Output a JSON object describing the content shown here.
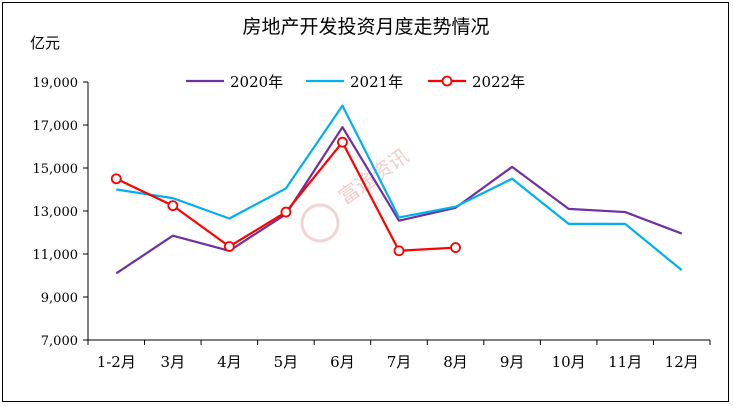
{
  "chart_data": {
    "type": "line",
    "title": "房地产开发投资月度走势情况",
    "unit_label": "亿元",
    "categories": [
      "1-2月",
      "3月",
      "4月",
      "5月",
      "6月",
      "7月",
      "8月",
      "9月",
      "10月",
      "11月",
      "12月"
    ],
    "ylim": [
      7000,
      19000
    ],
    "yticks": [
      7000,
      9000,
      11000,
      13000,
      15000,
      17000,
      19000
    ],
    "ytick_labels": [
      "7,000",
      "9,000",
      "11,000",
      "13,000",
      "15,000",
      "17,000",
      "19,000"
    ],
    "grid": false,
    "legend_position": "top",
    "series": [
      {
        "name": "2020年",
        "color": "#7030a0",
        "marker": "none",
        "values": [
          10100,
          11850,
          11150,
          12850,
          16900,
          12550,
          13150,
          15050,
          13100,
          12950,
          11950
        ]
      },
      {
        "name": "2021年",
        "color": "#00b0f0",
        "marker": "none",
        "values": [
          14000,
          13600,
          12650,
          14050,
          17900,
          12700,
          13200,
          14500,
          12400,
          12400,
          10250
        ]
      },
      {
        "name": "2022年",
        "color": "#ff0000",
        "marker": "circle",
        "values": [
          14500,
          13250,
          11350,
          12950,
          16200,
          11150,
          11300,
          null,
          null,
          null,
          null
        ]
      }
    ],
    "watermark": "富途资讯"
  }
}
